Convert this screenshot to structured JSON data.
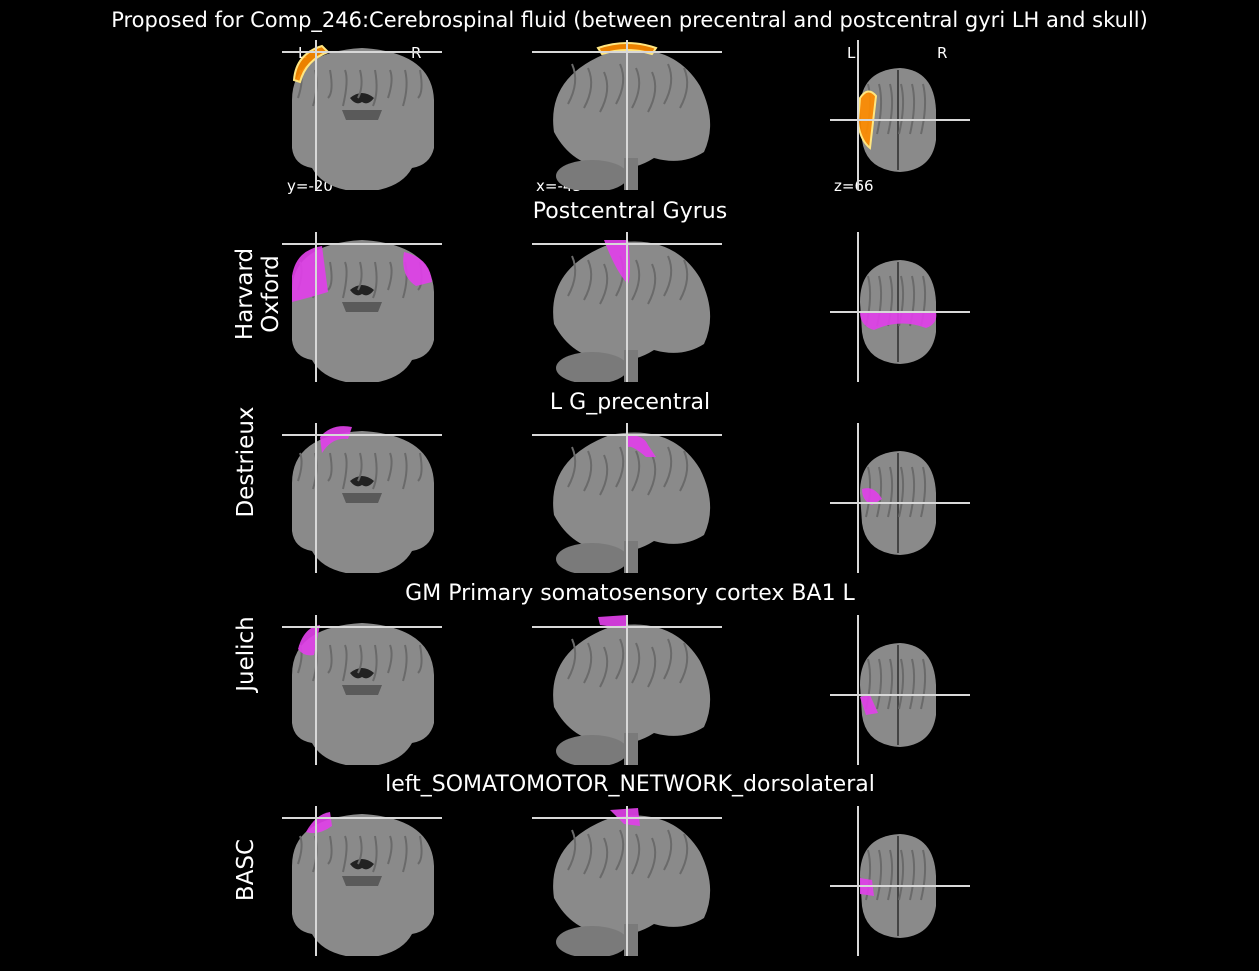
{
  "figure": {
    "title": "Proposed for Comp_246:Cerebrospinal fluid (between precentral and postcentral gyri LH and skull)",
    "coordinates": {
      "y": "y=-20",
      "x": "x=-43",
      "z": "z=66"
    },
    "orientation": {
      "left": "L",
      "right": "R"
    },
    "colors": {
      "background": "#000000",
      "brain": "#8a8a8a",
      "overlay_atlas": "#e040e8",
      "overlay_component": "#ff8c00",
      "crosshair": "#d8d8d8"
    }
  },
  "rows": [
    {
      "atlas": "",
      "region": "",
      "overlay": "component"
    },
    {
      "atlas": "Harvard\nOxford",
      "region": "Postcentral Gyrus",
      "overlay": "atlas"
    },
    {
      "atlas": "Destrieux",
      "region": "L G_precentral",
      "overlay": "atlas"
    },
    {
      "atlas": "Juelich",
      "region": "GM Primary somatosensory cortex BA1 L",
      "overlay": "atlas"
    },
    {
      "atlas": "BASC",
      "region": "left_SOMATOMOTOR_NETWORK_dorsolateral",
      "overlay": "atlas"
    }
  ]
}
